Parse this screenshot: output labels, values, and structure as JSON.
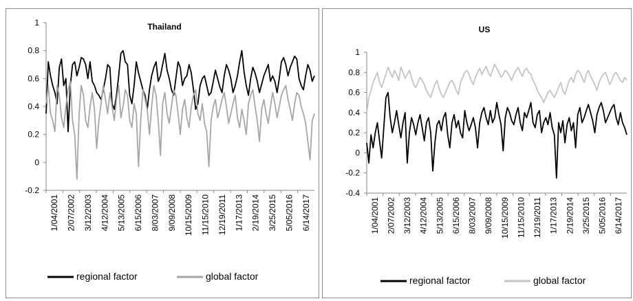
{
  "chart_data": [
    {
      "type": "line",
      "title": "Thailand",
      "xlabel": "",
      "ylabel": "",
      "ylim": [
        -0.2,
        1
      ],
      "yticks": [
        "-0.2",
        "0",
        "0.2",
        "0.4",
        "0.6",
        "0.8",
        "1"
      ],
      "yticks_values": [
        -0.2,
        0,
        0.2,
        0.4,
        0.6,
        0.8,
        1
      ],
      "grid": false,
      "legend_position": "bottom",
      "x_tick_labels": [
        "1/04/2001",
        "2/07/2002",
        "3/12/2003",
        "4/12/2004",
        "5/13/2005",
        "6/15/2006",
        "8/03/2007",
        "9/09/2008",
        "10/15/2009",
        "11/15/2010",
        "12/19/2011",
        "1/17/2013",
        "2/19/2014",
        "3/25/2015",
        "5/05/2016",
        "6/14/2017"
      ],
      "series": [
        {
          "name": "regional factor",
          "color": "#000000",
          "values": [
            0.35,
            0.72,
            0.62,
            0.55,
            0.5,
            0.42,
            0.68,
            0.74,
            0.55,
            0.6,
            0.22,
            0.55,
            0.7,
            0.72,
            0.62,
            0.68,
            0.75,
            0.74,
            0.7,
            0.6,
            0.72,
            0.58,
            0.55,
            0.5,
            0.48,
            0.45,
            0.52,
            0.6,
            0.7,
            0.68,
            0.42,
            0.38,
            0.48,
            0.62,
            0.78,
            0.8,
            0.72,
            0.7,
            0.48,
            0.42,
            0.55,
            0.72,
            0.64,
            0.58,
            0.52,
            0.48,
            0.38,
            0.52,
            0.62,
            0.68,
            0.72,
            0.58,
            0.62,
            0.7,
            0.78,
            0.66,
            0.6,
            0.52,
            0.48,
            0.6,
            0.72,
            0.68,
            0.55,
            0.6,
            0.62,
            0.7,
            0.64,
            0.52,
            0.38,
            0.42,
            0.55,
            0.6,
            0.62,
            0.55,
            0.48,
            0.5,
            0.58,
            0.66,
            0.6,
            0.54,
            0.5,
            0.62,
            0.7,
            0.66,
            0.6,
            0.5,
            0.55,
            0.62,
            0.72,
            0.8,
            0.65,
            0.55,
            0.48,
            0.6,
            0.68,
            0.64,
            0.58,
            0.5,
            0.56,
            0.62,
            0.66,
            0.7,
            0.58,
            0.62,
            0.58,
            0.5,
            0.6,
            0.72,
            0.75,
            0.7,
            0.62,
            0.68,
            0.72,
            0.76,
            0.74,
            0.6,
            0.55,
            0.52,
            0.62,
            0.7,
            0.66,
            0.58,
            0.62
          ]
        },
        {
          "name": "global factor",
          "color": "#a6a6a6",
          "values": [
            0.42,
            0.55,
            0.35,
            0.3,
            0.22,
            0.55,
            0.48,
            0.32,
            0.25,
            0.4,
            0.52,
            0.58,
            0.3,
            0.2,
            -0.12,
            0.35,
            0.55,
            0.48,
            0.3,
            0.25,
            0.4,
            0.5,
            0.38,
            0.1,
            0.3,
            0.42,
            0.55,
            0.45,
            0.35,
            0.5,
            0.4,
            0.3,
            0.45,
            0.55,
            0.32,
            0.4,
            0.52,
            0.48,
            0.3,
            0.25,
            0.42,
            0.35,
            -0.03,
            0.3,
            0.52,
            0.45,
            0.38,
            0.2,
            0.4,
            0.55,
            0.48,
            0.3,
            0.05,
            0.42,
            0.5,
            0.35,
            0.28,
            0.4,
            0.52,
            0.48,
            0.35,
            0.2,
            0.38,
            0.45,
            0.32,
            0.25,
            0.4,
            0.48,
            0.52,
            0.35,
            0.3,
            0.42,
            0.28,
            0.22,
            -0.03,
            0.3,
            0.4,
            0.45,
            0.32,
            0.38,
            0.45,
            0.5,
            0.4,
            0.28,
            0.35,
            0.42,
            0.48,
            0.32,
            0.25,
            0.38,
            0.3,
            0.2,
            0.42,
            0.48,
            0.52,
            0.4,
            0.3,
            0.15,
            0.38,
            0.45,
            0.35,
            0.28,
            0.4,
            0.5,
            0.42,
            0.32,
            0.4,
            0.48,
            0.52,
            0.55,
            0.45,
            0.38,
            0.3,
            0.42,
            0.5,
            0.48,
            0.4,
            0.35,
            0.28,
            0.15,
            0.02,
            0.3,
            0.35
          ]
        }
      ]
    },
    {
      "type": "line",
      "title": "US",
      "xlabel": "",
      "ylabel": "",
      "ylim": [
        -0.4,
        1
      ],
      "yticks": [
        "-0.4",
        "-0.2",
        "0",
        "0.2",
        "0.4",
        "0.6",
        "0.8",
        "1"
      ],
      "yticks_values": [
        -0.4,
        -0.2,
        0,
        0.2,
        0.4,
        0.6,
        0.8,
        1
      ],
      "grid": false,
      "legend_position": "bottom",
      "x_tick_labels": [
        "1/04/2001",
        "2/07/2002",
        "3/12/2003",
        "4/12/2004",
        "5/13/2005",
        "6/15/2006",
        "8/03/2007",
        "9/09/2008",
        "10/15/2009",
        "11/15/2010",
        "12/19/2011",
        "1/17/2013",
        "2/19/2014",
        "3/25/2015",
        "5/05/2016",
        "6/14/2017"
      ],
      "series": [
        {
          "name": "regional factor",
          "color": "#000000",
          "values": [
            0.1,
            -0.1,
            0.18,
            0.05,
            0.2,
            0.3,
            0.12,
            -0.05,
            0.25,
            0.55,
            0.6,
            0.35,
            0.2,
            0.3,
            0.42,
            0.28,
            0.15,
            0.3,
            0.4,
            -0.1,
            0.2,
            0.35,
            0.28,
            0.18,
            0.3,
            0.38,
            0.25,
            0.12,
            0.3,
            0.35,
            0.2,
            -0.18,
            0.1,
            0.28,
            0.32,
            0.22,
            0.35,
            0.4,
            0.18,
            0.05,
            0.3,
            0.38,
            0.25,
            0.32,
            0.2,
            0.15,
            0.42,
            0.3,
            0.22,
            0.28,
            0.35,
            0.25,
            0.05,
            0.3,
            0.4,
            0.45,
            0.35,
            0.28,
            0.42,
            0.3,
            0.35,
            0.5,
            0.38,
            0.28,
            0.02,
            0.35,
            0.45,
            0.4,
            0.32,
            0.28,
            0.38,
            0.45,
            0.3,
            0.22,
            0.4,
            0.35,
            0.42,
            0.5,
            0.3,
            0.25,
            0.38,
            0.42,
            0.2,
            0.3,
            0.35,
            0.28,
            0.4,
            0.25,
            0.18,
            -0.25,
            0.3,
            0.2,
            0.32,
            0.1,
            0.28,
            0.35,
            0.22,
            0.3,
            0.05,
            0.38,
            0.45,
            0.3,
            0.35,
            0.42,
            0.48,
            0.4,
            0.32,
            0.2,
            0.38,
            0.45,
            0.5,
            0.42,
            0.3,
            0.35,
            0.4,
            0.45,
            0.48,
            0.35,
            0.28,
            0.4,
            0.3,
            0.25,
            0.18
          ]
        },
        {
          "name": "global factor",
          "color": "#c4c4c4",
          "values": [
            0.4,
            0.55,
            0.62,
            0.7,
            0.75,
            0.8,
            0.7,
            0.65,
            0.72,
            0.78,
            0.85,
            0.8,
            0.75,
            0.82,
            0.78,
            0.72,
            0.85,
            0.8,
            0.74,
            0.78,
            0.82,
            0.75,
            0.68,
            0.65,
            0.7,
            0.75,
            0.72,
            0.68,
            0.62,
            0.58,
            0.55,
            0.62,
            0.68,
            0.72,
            0.64,
            0.58,
            0.55,
            0.6,
            0.65,
            0.7,
            0.72,
            0.68,
            0.62,
            0.58,
            0.7,
            0.75,
            0.8,
            0.82,
            0.78,
            0.72,
            0.68,
            0.75,
            0.8,
            0.84,
            0.78,
            0.82,
            0.86,
            0.8,
            0.76,
            0.82,
            0.88,
            0.84,
            0.8,
            0.75,
            0.78,
            0.82,
            0.8,
            0.76,
            0.72,
            0.78,
            0.82,
            0.85,
            0.8,
            0.76,
            0.82,
            0.84,
            0.8,
            0.78,
            0.72,
            0.68,
            0.62,
            0.58,
            0.55,
            0.5,
            0.55,
            0.6,
            0.62,
            0.58,
            0.55,
            0.6,
            0.65,
            0.7,
            0.62,
            0.58,
            0.65,
            0.72,
            0.75,
            0.7,
            0.78,
            0.82,
            0.8,
            0.75,
            0.7,
            0.78,
            0.82,
            0.76,
            0.72,
            0.68,
            0.62,
            0.7,
            0.75,
            0.78,
            0.8,
            0.74,
            0.68,
            0.72,
            0.78,
            0.8,
            0.76,
            0.72,
            0.7,
            0.75,
            0.72
          ]
        }
      ]
    }
  ]
}
